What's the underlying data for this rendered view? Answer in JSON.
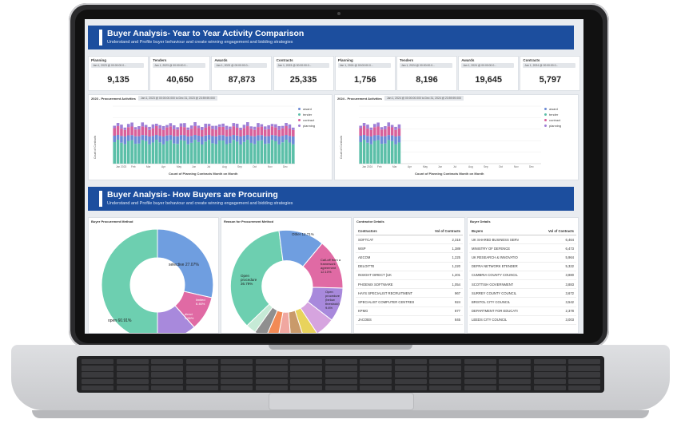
{
  "section1": {
    "title": "Buyer Analysis- Year to Year Activity Comparison",
    "subtitle": "Understand and Profile buyer behaviour and create winning engagement and bidding strategies"
  },
  "kpis_2023": [
    {
      "label": "Planning",
      "date": "Jan 1, 2023 @ 00:00:00.0...",
      "value": "9,135"
    },
    {
      "label": "Tenders",
      "date": "Jan 1, 2023 @ 00:00:00.0...",
      "value": "40,650"
    },
    {
      "label": "Awards",
      "date": "Jan 1, 2023 @ 00:00:00.0...",
      "value": "87,873"
    },
    {
      "label": "Contracts",
      "date": "Jan 1, 2023 @ 00:00:00.0...",
      "value": "25,335"
    }
  ],
  "kpis_2024": [
    {
      "label": "Planning",
      "date": "Jan 1, 2024 @ 00:00:00.0...",
      "value": "1,756"
    },
    {
      "label": "Tenders",
      "date": "Jan 1, 2024 @ 00:00:00.0...",
      "value": "8,196"
    },
    {
      "label": "Awards",
      "date": "Jan 1, 2024 @ 00:00:00.0...",
      "value": "19,645"
    },
    {
      "label": "Contracts",
      "date": "Jan 1, 2024 @ 00:00:00.0...",
      "value": "5,797"
    }
  ],
  "chart_2023": {
    "title": "2023 - Procurement Activities",
    "range": "Jan 1, 2023 @ 00:00:00.000 to Dec 31, 2023 @ 23:59:59.000",
    "ylabel": "Count of Contracts",
    "xlabel": "Count of Planning Contracts Month on Month",
    "ticks": [
      "Jan 2023",
      "Feb",
      "Mar",
      "Apr",
      "May",
      "Jun",
      "Jul",
      "Aug",
      "Sep",
      "Oct",
      "Nov",
      "Dec"
    ]
  },
  "chart_2024": {
    "title": "2024 - Procurement Activities",
    "range": "Jan 1, 2024 @ 00:00:00.000 to Dec 31, 2024 @ 23:59:59.000",
    "ylabel": "Count of Contracts",
    "xlabel": "Count of Planning Contracts Month on Month",
    "ticks": [
      "Jan 2024",
      "Feb",
      "Mar",
      "Apr",
      "May",
      "Jun",
      "Jul",
      "Aug",
      "Sep",
      "Oct",
      "Nov",
      "Dec"
    ]
  },
  "legend": [
    {
      "name": "award",
      "color": "#6d8bd6"
    },
    {
      "name": "tender",
      "color": "#5bbfa8"
    },
    {
      "name": "contract",
      "color": "#d8609a"
    },
    {
      "name": "planning",
      "color": "#9f7fd6"
    }
  ],
  "section2": {
    "title": "Buyer Analysis- How Buyers are Procuring",
    "subtitle": "Understand and Profile buyer behaviour and create winning engagement and bidding strategies"
  },
  "method_panel": {
    "title": "Buyer Procurement Method",
    "labels": {
      "selective": "selective 27.07%",
      "open": "open 60.91%",
      "limited": "limited 6.46%",
      "direct": "direct 5.56%"
    }
  },
  "reason_panel": {
    "title": "Reason for Procurement Method",
    "labels": {
      "other": "Other 12.71%",
      "calloff": "Call-off from a framework agreement 12.10%",
      "below": "Open procedure (below threshold) 9.6%",
      "open": "Open procedure 36.79%"
    }
  },
  "contractors": {
    "title": "Contractor Details",
    "col1": "Contractors",
    "col2": "Vol of Contracts",
    "rows": [
      [
        "SOFTCAT",
        "2,318"
      ],
      [
        "WSP",
        "1,389"
      ],
      [
        "AECOM",
        "1,225"
      ],
      [
        "DELOITTE",
        "1,220"
      ],
      [
        "INSIGHT DIRECT (UK",
        "1,201"
      ],
      [
        "PHOENIX SOFTWARE",
        "1,054"
      ],
      [
        "HAYS SPECIALIST RECRUITMENT",
        "967"
      ],
      [
        "SPECIALIST COMPUTER CENTRES",
        "924"
      ],
      [
        "KPMG",
        "877"
      ],
      [
        "JACOBS",
        "845"
      ]
    ]
  },
  "buyers": {
    "title": "Buyer Details",
    "col1": "Buyers",
    "col2": "Vol of Contracts",
    "rows": [
      [
        "UK SHARED BUSINESS SERV",
        "6,464"
      ],
      [
        "MINISTRY OF DEFENCE",
        "6,473"
      ],
      [
        "UK RESEARCH & INNOVATIO",
        "5,964"
      ],
      [
        "DEFRA NETWORK ETENDER",
        "5,322"
      ],
      [
        "CUMBRIA COUNTY COUNCIL",
        "3,880"
      ],
      [
        "SCOTTISH GOVERNMENT",
        "3,883"
      ],
      [
        "SURREY COUNTY COUNCIL",
        "3,672"
      ],
      [
        "BRISTOL CITY COUNCIL",
        "3,542"
      ],
      [
        "DEPARTMENT FOR EDUCATI",
        "2,378"
      ],
      [
        "LEEDS CITY COUNCIL",
        "3,003"
      ]
    ]
  }
}
